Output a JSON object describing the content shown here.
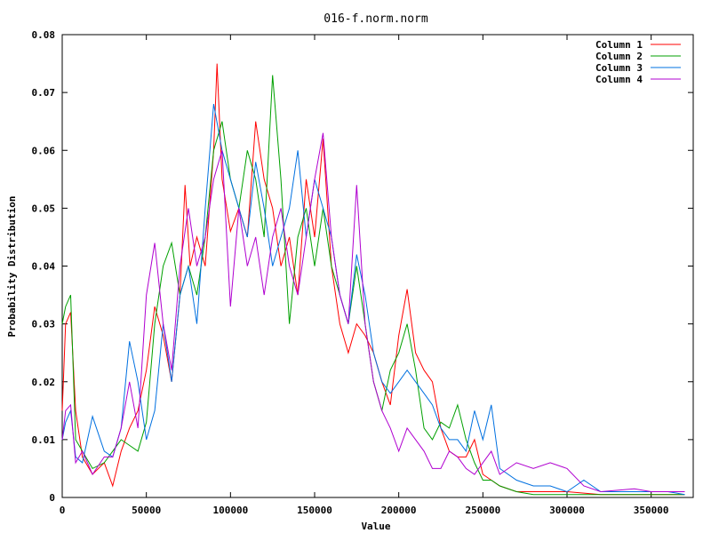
{
  "chart_data": {
    "type": "line",
    "title": "016-f.norm.norm",
    "xlabel": "Value",
    "ylabel": "Probability Distribution",
    "xlim": [
      0,
      375000
    ],
    "ylim": [
      0,
      0.08
    ],
    "x_ticks": [
      0,
      50000,
      100000,
      150000,
      200000,
      250000,
      300000,
      350000
    ],
    "x_tick_labels": [
      "0",
      "50000",
      "100000",
      "150000",
      "200000",
      "250000",
      "300000",
      "350000"
    ],
    "y_ticks": [
      0,
      0.01,
      0.02,
      0.03,
      0.04,
      0.05,
      0.06,
      0.07,
      0.08
    ],
    "y_tick_labels": [
      "0",
      "0.01",
      "0.02",
      "0.03",
      "0.04",
      "0.05",
      "0.06",
      "0.07",
      "0.08"
    ],
    "grid": false,
    "legend_position": "top-right",
    "series": [
      {
        "name": "Column 1",
        "color": "#ff0000",
        "x": [
          0,
          2000,
          5000,
          8000,
          12000,
          18000,
          25000,
          30000,
          35000,
          40000,
          45000,
          50000,
          55000,
          60000,
          65000,
          70000,
          73000,
          76000,
          80000,
          85000,
          90000,
          92000,
          95000,
          100000,
          105000,
          110000,
          115000,
          120000,
          125000,
          130000,
          135000,
          140000,
          145000,
          150000,
          155000,
          160000,
          165000,
          170000,
          175000,
          180000,
          185000,
          190000,
          195000,
          200000,
          205000,
          210000,
          215000,
          220000,
          225000,
          230000,
          235000,
          240000,
          245000,
          250000,
          255000,
          260000,
          270000,
          280000,
          290000,
          300000,
          320000,
          340000,
          360000,
          370000
        ],
        "y": [
          0.015,
          0.03,
          0.032,
          0.015,
          0.007,
          0.004,
          0.006,
          0.002,
          0.008,
          0.012,
          0.015,
          0.022,
          0.033,
          0.028,
          0.02,
          0.035,
          0.054,
          0.04,
          0.045,
          0.04,
          0.06,
          0.075,
          0.055,
          0.046,
          0.05,
          0.045,
          0.065,
          0.055,
          0.05,
          0.04,
          0.045,
          0.035,
          0.055,
          0.045,
          0.062,
          0.04,
          0.03,
          0.025,
          0.03,
          0.028,
          0.025,
          0.02,
          0.016,
          0.028,
          0.036,
          0.025,
          0.022,
          0.02,
          0.012,
          0.008,
          0.007,
          0.007,
          0.01,
          0.004,
          0.003,
          0.002,
          0.001,
          0.001,
          0.001,
          0.001,
          0.0005,
          0.0005,
          0.0005,
          0.0005
        ]
      },
      {
        "name": "Column 2",
        "color": "#00a000",
        "x": [
          0,
          2000,
          5000,
          8000,
          12000,
          18000,
          25000,
          30000,
          35000,
          40000,
          45000,
          50000,
          55000,
          60000,
          65000,
          70000,
          75000,
          80000,
          85000,
          90000,
          95000,
          100000,
          105000,
          110000,
          115000,
          120000,
          125000,
          130000,
          135000,
          140000,
          145000,
          150000,
          155000,
          160000,
          165000,
          170000,
          175000,
          180000,
          185000,
          190000,
          195000,
          200000,
          205000,
          210000,
          215000,
          220000,
          225000,
          230000,
          235000,
          240000,
          245000,
          250000,
          255000,
          260000,
          270000,
          280000,
          290000,
          300000,
          320000,
          340000,
          360000,
          370000
        ],
        "y": [
          0.03,
          0.033,
          0.035,
          0.01,
          0.008,
          0.005,
          0.006,
          0.008,
          0.01,
          0.009,
          0.008,
          0.013,
          0.03,
          0.04,
          0.044,
          0.035,
          0.04,
          0.035,
          0.045,
          0.06,
          0.065,
          0.055,
          0.05,
          0.06,
          0.055,
          0.045,
          0.073,
          0.055,
          0.03,
          0.045,
          0.05,
          0.04,
          0.05,
          0.04,
          0.035,
          0.03,
          0.04,
          0.03,
          0.02,
          0.015,
          0.022,
          0.025,
          0.03,
          0.022,
          0.012,
          0.01,
          0.013,
          0.012,
          0.016,
          0.01,
          0.006,
          0.003,
          0.003,
          0.002,
          0.001,
          0.0005,
          0.0005,
          0.0005,
          0.0005,
          0.0005,
          0.0005,
          0.0005
        ]
      },
      {
        "name": "Column 3",
        "color": "#0070e0",
        "x": [
          0,
          2000,
          5000,
          8000,
          12000,
          18000,
          25000,
          30000,
          35000,
          40000,
          45000,
          50000,
          55000,
          60000,
          65000,
          70000,
          75000,
          80000,
          85000,
          90000,
          95000,
          100000,
          105000,
          110000,
          115000,
          120000,
          125000,
          130000,
          135000,
          140000,
          145000,
          150000,
          155000,
          160000,
          165000,
          170000,
          175000,
          180000,
          185000,
          190000,
          195000,
          200000,
          205000,
          210000,
          215000,
          220000,
          225000,
          230000,
          235000,
          240000,
          245000,
          250000,
          255000,
          260000,
          270000,
          280000,
          290000,
          300000,
          310000,
          320000,
          340000,
          360000,
          370000
        ],
        "y": [
          0.01,
          0.013,
          0.015,
          0.007,
          0.006,
          0.014,
          0.008,
          0.007,
          0.012,
          0.027,
          0.02,
          0.01,
          0.015,
          0.03,
          0.02,
          0.035,
          0.04,
          0.03,
          0.05,
          0.068,
          0.06,
          0.055,
          0.05,
          0.045,
          0.058,
          0.05,
          0.04,
          0.045,
          0.05,
          0.06,
          0.045,
          0.055,
          0.05,
          0.045,
          0.035,
          0.03,
          0.042,
          0.035,
          0.025,
          0.02,
          0.018,
          0.02,
          0.022,
          0.02,
          0.018,
          0.016,
          0.012,
          0.01,
          0.01,
          0.008,
          0.015,
          0.01,
          0.016,
          0.005,
          0.003,
          0.002,
          0.002,
          0.001,
          0.003,
          0.001,
          0.001,
          0.001,
          0.0005
        ]
      },
      {
        "name": "Column 4",
        "color": "#b000d0",
        "x": [
          0,
          2000,
          5000,
          8000,
          12000,
          18000,
          25000,
          30000,
          35000,
          40000,
          45000,
          50000,
          55000,
          60000,
          65000,
          70000,
          75000,
          80000,
          85000,
          90000,
          95000,
          100000,
          105000,
          110000,
          115000,
          120000,
          125000,
          130000,
          135000,
          140000,
          145000,
          150000,
          155000,
          160000,
          165000,
          170000,
          175000,
          180000,
          185000,
          190000,
          195000,
          200000,
          205000,
          210000,
          215000,
          220000,
          225000,
          230000,
          235000,
          240000,
          245000,
          250000,
          255000,
          260000,
          270000,
          280000,
          290000,
          300000,
          310000,
          320000,
          340000,
          350000,
          360000,
          370000
        ],
        "y": [
          0.01,
          0.015,
          0.016,
          0.006,
          0.008,
          0.004,
          0.007,
          0.007,
          0.012,
          0.02,
          0.012,
          0.035,
          0.044,
          0.03,
          0.022,
          0.04,
          0.05,
          0.04,
          0.045,
          0.055,
          0.06,
          0.033,
          0.05,
          0.04,
          0.045,
          0.035,
          0.045,
          0.05,
          0.04,
          0.035,
          0.045,
          0.055,
          0.063,
          0.045,
          0.035,
          0.03,
          0.054,
          0.03,
          0.02,
          0.015,
          0.012,
          0.008,
          0.012,
          0.01,
          0.008,
          0.005,
          0.005,
          0.008,
          0.007,
          0.005,
          0.004,
          0.006,
          0.008,
          0.004,
          0.006,
          0.005,
          0.006,
          0.005,
          0.002,
          0.001,
          0.0015,
          0.001,
          0.001,
          0.001
        ]
      }
    ]
  }
}
